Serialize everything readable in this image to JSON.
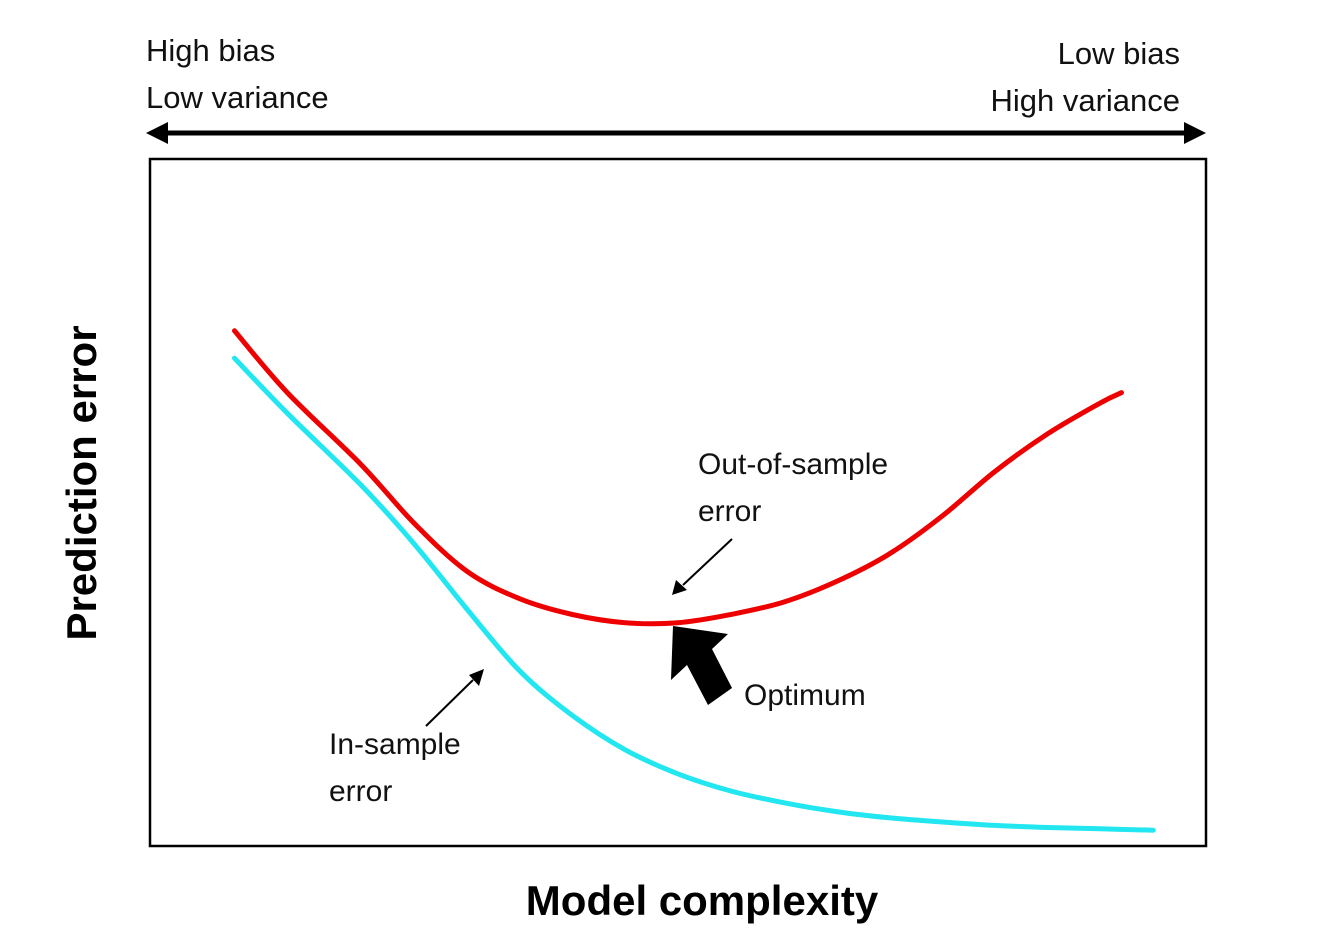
{
  "chart_data": {
    "type": "line",
    "xlabel": "Model complexity",
    "ylabel": "Prediction error",
    "x_ticks": false,
    "y_ticks": false,
    "grid": false,
    "top_axis": {
      "left_label": [
        "High bias",
        "Low variance"
      ],
      "right_label": [
        "Low bias",
        "High variance"
      ],
      "double_arrow": true
    },
    "series": [
      {
        "name": "Out-of-sample error",
        "color": "#ee0000",
        "x": [
          0.08,
          0.13,
          0.2,
          0.25,
          0.3,
          0.35,
          0.4,
          0.45,
          0.5,
          0.55,
          0.6,
          0.65,
          0.7,
          0.75,
          0.8,
          0.85,
          0.9,
          0.92
        ],
        "y": [
          0.75,
          0.66,
          0.555,
          0.47,
          0.4,
          0.36,
          0.337,
          0.325,
          0.325,
          0.337,
          0.355,
          0.385,
          0.425,
          0.48,
          0.545,
          0.6,
          0.645,
          0.66
        ]
      },
      {
        "name": "In-sample error",
        "color": "#22e6f0",
        "x": [
          0.08,
          0.13,
          0.2,
          0.25,
          0.3,
          0.35,
          0.4,
          0.45,
          0.5,
          0.55,
          0.6,
          0.65,
          0.7,
          0.75,
          0.8,
          0.85,
          0.9,
          0.95
        ],
        "y": [
          0.71,
          0.63,
          0.525,
          0.44,
          0.345,
          0.255,
          0.19,
          0.14,
          0.105,
          0.08,
          0.063,
          0.05,
          0.041,
          0.035,
          0.03,
          0.027,
          0.025,
          0.023
        ]
      }
    ],
    "annotations": [
      {
        "name": "out-of-sample-label",
        "lines": [
          "Out-of-sample",
          "error"
        ],
        "target_series": "Out-of-sample error"
      },
      {
        "name": "in-sample-label",
        "lines": [
          "In-sample",
          "error"
        ],
        "target_series": "In-sample error"
      },
      {
        "name": "optimum-label",
        "lines": [
          "Optimum"
        ],
        "marker": "bold-arrow"
      }
    ]
  }
}
